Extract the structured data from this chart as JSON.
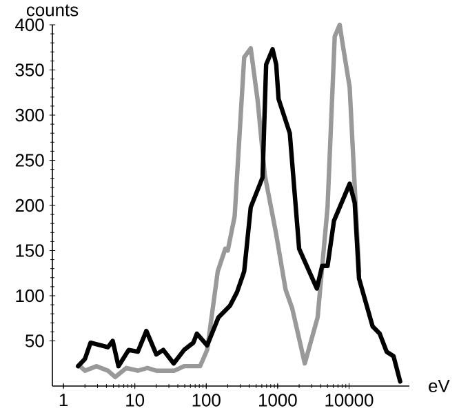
{
  "chart_data": {
    "type": "line",
    "xlabel": "eV",
    "ylabel": "counts",
    "log": "x",
    "xlim": [
      0.7,
      70000
    ],
    "ylim": [
      0,
      400
    ],
    "xticks": [
      1,
      10,
      100,
      1000,
      10000
    ],
    "yticks": [
      50,
      100,
      150,
      200,
      250,
      300,
      350,
      400
    ],
    "marker": "none",
    "line_style": "solid",
    "series": [
      {
        "color": "#999999",
        "x": [
          1.7,
          2.0,
          2.9,
          4.2,
          5.3,
          7.6,
          11,
          15,
          20,
          36,
          49,
          82,
          103,
          145,
          185,
          200,
          250,
          340,
          420,
          525,
          660,
          955,
          1290,
          1600,
          2400,
          3630,
          5000,
          6300,
          7400,
          8200,
          10200,
          13800
        ],
        "values": [
          22,
          17,
          22,
          17,
          10,
          20,
          17,
          20,
          17,
          17,
          22,
          22,
          40,
          127,
          152,
          150,
          188,
          364,
          374,
          316,
          234,
          168,
          107,
          86,
          25,
          76,
          198,
          387,
          400,
          377,
          331,
          127
        ]
      },
      {
        "color": "#000000",
        "x": [
          1.6,
          2.0,
          2.4,
          4.2,
          4.9,
          5.9,
          8.2,
          11,
          14.5,
          20,
          25,
          35,
          49,
          66,
          74,
          103,
          148,
          215,
          270,
          340,
          420,
          615,
          690,
          850,
          955,
          1030,
          1480,
          2000,
          3540,
          4200,
          5000,
          6150,
          10200,
          12000,
          13800,
          17400,
          21400,
          26900,
          33600,
          42000,
          52000
        ],
        "values": [
          22,
          30,
          48,
          43,
          50,
          22,
          40,
          38,
          61,
          35,
          40,
          25,
          40,
          48,
          58,
          45,
          76,
          89,
          104,
          127,
          198,
          231,
          356,
          373,
          356,
          318,
          280,
          152,
          108,
          133,
          133,
          183,
          224,
          203,
          119,
          91,
          66,
          58,
          38,
          33,
          5
        ]
      }
    ]
  }
}
